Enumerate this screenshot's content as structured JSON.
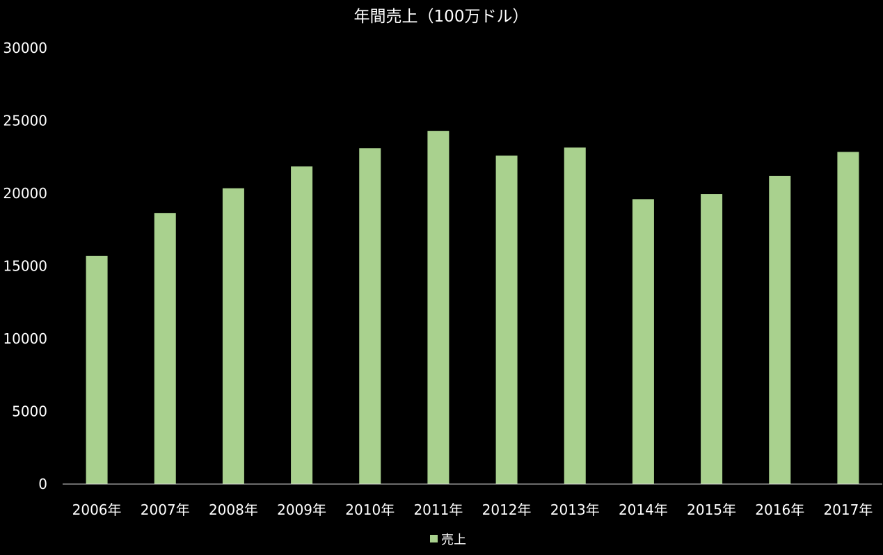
{
  "chart_data": {
    "type": "bar",
    "title": "年間売上（100万ドル）",
    "xlabel": "",
    "ylabel": "",
    "categories": [
      "2006年",
      "2007年",
      "2008年",
      "2009年",
      "2010年",
      "2011年",
      "2012年",
      "2013年",
      "2014年",
      "2015年",
      "2016年",
      "2017年"
    ],
    "series": [
      {
        "name": "売上",
        "color": "#a9d18e",
        "values": [
          15700,
          18650,
          20350,
          21850,
          23100,
          24300,
          22600,
          23150,
          19600,
          19950,
          21200,
          22850
        ]
      }
    ],
    "ylim": [
      0,
      30000
    ],
    "yticks": [
      0,
      5000,
      10000,
      15000,
      20000,
      25000,
      30000
    ],
    "ytick_labels": [
      "0",
      "5000",
      "10000",
      "15000",
      "20000",
      "25000",
      "30000"
    ],
    "grid": false,
    "legend_position": "bottom",
    "colors": {
      "background": "#000000",
      "text": "#ffffff",
      "axis": "#d9d9d9"
    }
  }
}
